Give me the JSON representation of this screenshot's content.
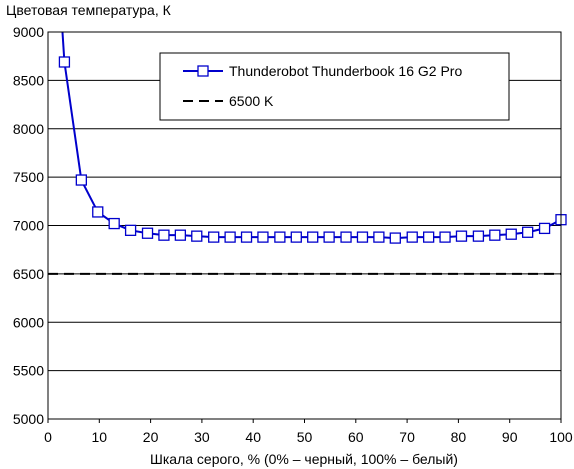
{
  "chart_data": {
    "type": "line",
    "ylabel": "Цветовая температура, К",
    "xlabel": "Шкала серого, % (0% – черный, 100% – белый)",
    "xlim": [
      0,
      100
    ],
    "ylim": [
      5000,
      9000
    ],
    "x_ticks": [
      "0",
      "10",
      "20",
      "30",
      "40",
      "50",
      "60",
      "70",
      "80",
      "90",
      "100"
    ],
    "y_ticks": [
      "5000",
      "5500",
      "6000",
      "6500",
      "7000",
      "7500",
      "8000",
      "8500",
      "9000"
    ],
    "grid": "horizontal",
    "legend_position": "top-right",
    "series": [
      {
        "name": "Thunderobot Thunderbook 16 G2 Pro",
        "color": "#0000cc",
        "marker": "square",
        "style": "solid",
        "x": [
          3.2,
          6.5,
          9.7,
          12.9,
          16.1,
          19.4,
          22.6,
          25.8,
          29.0,
          32.3,
          35.5,
          38.7,
          41.9,
          45.2,
          48.4,
          51.6,
          54.8,
          58.1,
          61.3,
          64.5,
          67.7,
          71.0,
          74.2,
          77.4,
          80.6,
          83.9,
          87.1,
          90.3,
          93.5,
          96.8,
          100
        ],
        "y": [
          8690,
          7470,
          7140,
          7020,
          6950,
          6920,
          6900,
          6900,
          6890,
          6880,
          6880,
          6880,
          6880,
          6880,
          6880,
          6880,
          6880,
          6880,
          6880,
          6880,
          6870,
          6880,
          6880,
          6880,
          6890,
          6890,
          6900,
          6910,
          6930,
          6970,
          7060
        ],
        "line_start": {
          "x": 2.7,
          "y": 9100
        }
      },
      {
        "name": "6500 K",
        "color": "#000000",
        "style": "dashed",
        "x": [
          0,
          100
        ],
        "y": [
          6500,
          6500
        ]
      }
    ]
  }
}
